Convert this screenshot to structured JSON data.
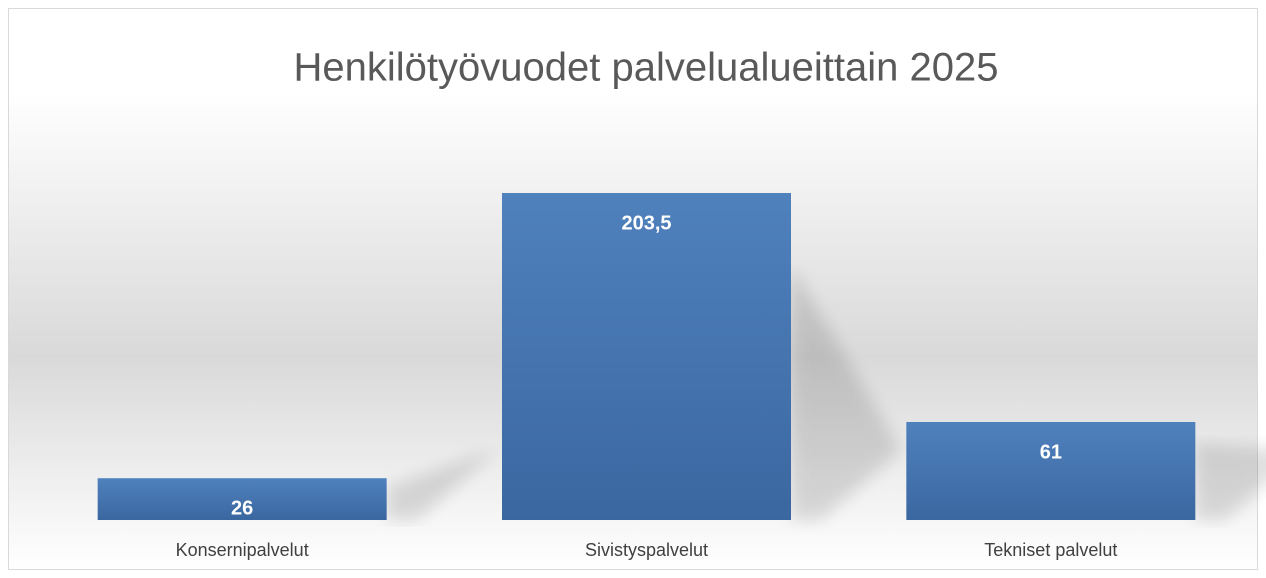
{
  "chart_data": {
    "type": "bar",
    "title": "Henkilötyövuodet palvelualueittain 2025",
    "categories": [
      "Konsernipalvelut",
      "Sivistyspalvelut",
      "Tekniset palvelut"
    ],
    "values": [
      26,
      203.5,
      61
    ],
    "value_labels": [
      "26",
      "203,5",
      "61"
    ],
    "color": "#4a7ebb"
  }
}
